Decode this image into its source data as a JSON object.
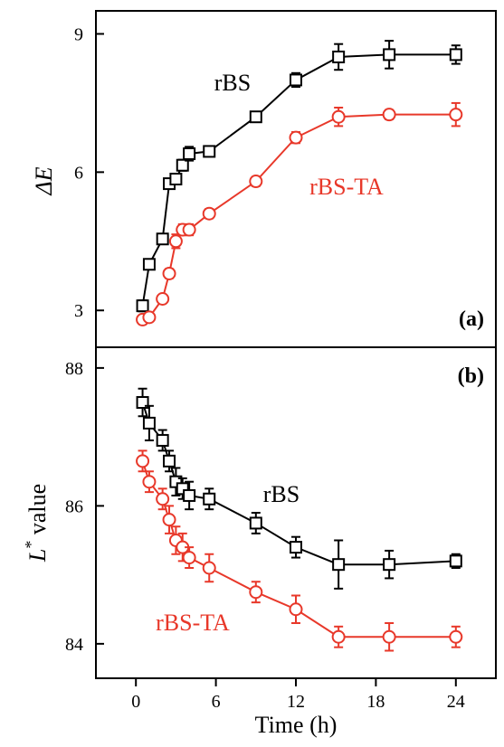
{
  "chart_data": [
    {
      "type": "line",
      "panel_label": "(a)",
      "ylabel_main": "ΔE",
      "ylabel_sup": "",
      "ylabel_rest": "",
      "ylim": [
        2.2,
        9.5
      ],
      "yticks": [
        3,
        6,
        9
      ],
      "xlim": [
        -3,
        27
      ],
      "x_hidden": true,
      "series": [
        {
          "name": "rBS",
          "color": "#000000",
          "marker": "square",
          "x": [
            0.5,
            1,
            2,
            2.5,
            3,
            3.5,
            4,
            5.5,
            9,
            12,
            15.2,
            19,
            24
          ],
          "y": [
            3.1,
            4.0,
            4.55,
            5.75,
            5.85,
            6.15,
            6.4,
            6.45,
            7.2,
            8.0,
            8.5,
            8.55,
            8.55
          ],
          "err": [
            0.12,
            0.08,
            0.08,
            0.1,
            0.1,
            0.12,
            0.15,
            0.1,
            0.1,
            0.15,
            0.28,
            0.3,
            0.2
          ]
        },
        {
          "name": "rBS-TA",
          "color": "#e8382a",
          "marker": "circle",
          "x": [
            0.5,
            1,
            2,
            2.5,
            3,
            3.5,
            4,
            5.5,
            9,
            12,
            15.2,
            19,
            24
          ],
          "y": [
            2.8,
            2.85,
            3.25,
            3.8,
            4.5,
            4.75,
            4.75,
            5.1,
            5.8,
            6.75,
            7.2,
            7.25,
            7.25
          ],
          "err": [
            0.05,
            0.05,
            0.08,
            0.1,
            0.15,
            0.12,
            0.12,
            0.1,
            0.1,
            0.12,
            0.2,
            0.1,
            0.25
          ]
        }
      ]
    },
    {
      "type": "line",
      "panel_label": "(b)",
      "ylabel_main": "L",
      "ylabel_sup": "*",
      "ylabel_rest": " value",
      "ylim": [
        83.5,
        88.3
      ],
      "yticks": [
        84,
        86,
        88
      ],
      "xlim": [
        -3,
        27
      ],
      "xticks": [
        0,
        6,
        12,
        18,
        24
      ],
      "xlabel": "Time (h)",
      "series": [
        {
          "name": "rBS",
          "color": "#000000",
          "marker": "square",
          "x": [
            0.5,
            1,
            2,
            2.5,
            3,
            3.5,
            4,
            5.5,
            9,
            12,
            15.2,
            19,
            24
          ],
          "y": [
            87.5,
            87.2,
            86.95,
            86.65,
            86.35,
            86.25,
            86.15,
            86.1,
            85.75,
            85.4,
            85.15,
            85.15,
            85.2
          ],
          "err": [
            0.2,
            0.25,
            0.15,
            0.15,
            0.2,
            0.15,
            0.2,
            0.15,
            0.15,
            0.15,
            0.35,
            0.2,
            0.1
          ]
        },
        {
          "name": "rBS-TA",
          "color": "#e8382a",
          "marker": "circle",
          "x": [
            0.5,
            1,
            2,
            2.5,
            3,
            3.5,
            4,
            5.5,
            9,
            12,
            15.2,
            19,
            24
          ],
          "y": [
            86.65,
            86.35,
            86.1,
            85.8,
            85.5,
            85.4,
            85.25,
            85.1,
            84.75,
            84.5,
            84.1,
            84.1,
            84.1
          ],
          "err": [
            0.15,
            0.15,
            0.15,
            0.2,
            0.2,
            0.2,
            0.15,
            0.2,
            0.15,
            0.2,
            0.15,
            0.2,
            0.15
          ]
        }
      ]
    }
  ]
}
